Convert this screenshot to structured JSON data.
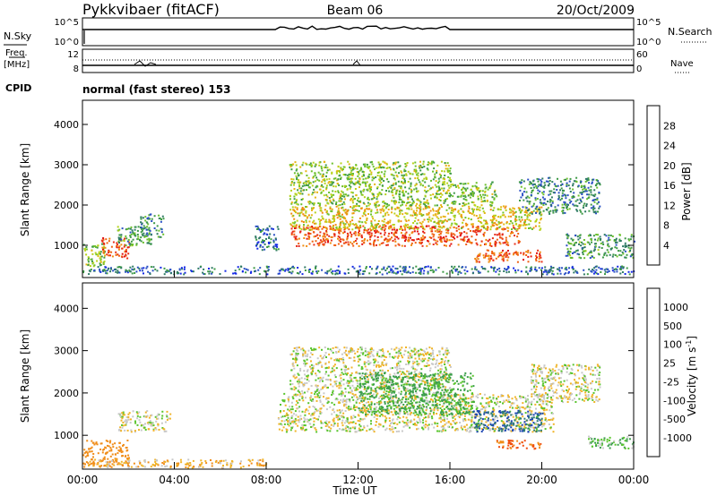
{
  "header": {
    "station": "Pykkvibaer (fitACF)",
    "beam": "Beam 06",
    "date": "20/Oct/2009"
  },
  "noise_panel": {
    "left_label": "N.Sky",
    "right_label": "N.Search",
    "left_ticks": [
      "10^5",
      "10^0"
    ],
    "right_ticks": [
      "10^5",
      "10^0"
    ]
  },
  "freq_panel": {
    "left_label_top": "Freq.",
    "left_label_unit": "[MHz]",
    "left_ticks": [
      "12",
      "8"
    ],
    "right_label": "Nave",
    "right_ticks": [
      "60",
      "0"
    ]
  },
  "cpid": {
    "label": "CPID",
    "text": "normal (fast stereo) 153"
  },
  "chart_data": [
    {
      "type": "heatmap",
      "title": "Power",
      "xlabel": "Time UT",
      "ylabel": "Slant Range [km]",
      "x_ticks": [
        "00:00",
        "04:00",
        "08:00",
        "12:00",
        "16:00",
        "20:00",
        "00:00"
      ],
      "y_ticks": [
        1000,
        2000,
        3000,
        4000
      ],
      "ylim": [
        200,
        4600
      ],
      "colorbar": {
        "label": "Power [dB]",
        "ticks": [
          "4",
          "8",
          "12",
          "16",
          "20",
          "24",
          "28"
        ],
        "colors": [
          "#1428e6",
          "#2a50c4",
          "#2e7a64",
          "#3e9a46",
          "#6cc02c",
          "#b6d21a",
          "#e6b414",
          "#f08c10",
          "#f06010",
          "#e83018",
          "#e01010"
        ]
      },
      "echo_regions": [
        {
          "t_start": 0.0,
          "t_end": 1.0,
          "r_low": 500,
          "r_high": 1100,
          "power": 14
        },
        {
          "t_start": 0.8,
          "t_end": 2.0,
          "r_low": 700,
          "r_high": 1200,
          "power": 26
        },
        {
          "t_start": 1.5,
          "t_end": 3.0,
          "r_low": 1000,
          "r_high": 1500,
          "power": 10
        },
        {
          "t_start": 2.5,
          "t_end": 3.5,
          "r_low": 1200,
          "r_high": 1800,
          "power": 8
        },
        {
          "t_start": 0.0,
          "t_end": 24.0,
          "r_low": 300,
          "r_high": 500,
          "power": 6
        },
        {
          "t_start": 7.5,
          "t_end": 8.5,
          "r_low": 900,
          "r_high": 1500,
          "power": 6
        },
        {
          "t_start": 9.0,
          "t_end": 19.0,
          "r_low": 1000,
          "r_high": 1500,
          "power": 26
        },
        {
          "t_start": 9.0,
          "t_end": 20.0,
          "r_low": 1400,
          "r_high": 2000,
          "power": 18
        },
        {
          "t_start": 9.0,
          "t_end": 18.0,
          "r_low": 2000,
          "r_high": 2600,
          "power": 14
        },
        {
          "t_start": 9.0,
          "t_end": 16.0,
          "r_low": 2600,
          "r_high": 3100,
          "power": 14
        },
        {
          "t_start": 17.0,
          "t_end": 20.0,
          "r_low": 600,
          "r_high": 900,
          "power": 26
        },
        {
          "t_start": 19.0,
          "t_end": 22.5,
          "r_low": 1800,
          "r_high": 2700,
          "power": 8
        },
        {
          "t_start": 21.0,
          "t_end": 24.0,
          "r_low": 700,
          "r_high": 1300,
          "power": 10
        }
      ]
    },
    {
      "type": "heatmap",
      "title": "Velocity",
      "xlabel": "Time UT",
      "ylabel": "Slant Range [km]",
      "x_ticks": [
        "00:00",
        "04:00",
        "08:00",
        "12:00",
        "16:00",
        "20:00",
        "00:00"
      ],
      "y_ticks": [
        1000,
        2000,
        3000,
        4000
      ],
      "ylim": [
        200,
        4600
      ],
      "colorbar": {
        "label": "Velocity [m s",
        "label_sup": "-1",
        "label_end": "]",
        "ticks": [
          "1000",
          "500",
          "100",
          "25",
          "-25",
          "-100",
          "-500",
          "-1000"
        ],
        "colors": [
          "#1e46b4",
          "#2e7c74",
          "#3a9e4a",
          "#58c42c",
          "#a0c83c",
          "#c8c8c8",
          "#c8c8c8",
          "#f0b428",
          "#f08c18",
          "#f05010",
          "#e81010"
        ]
      },
      "echo_regions": [
        {
          "t_start": 0.0,
          "t_end": 2.0,
          "r_low": 300,
          "r_high": 900,
          "velocity": -200
        },
        {
          "t_start": 1.5,
          "t_end": 3.8,
          "r_low": 1100,
          "r_high": 1600,
          "velocity": 0
        },
        {
          "t_start": 0.0,
          "t_end": 8.0,
          "r_low": 250,
          "r_high": 450,
          "velocity": -80
        },
        {
          "t_start": 8.5,
          "t_end": 20.5,
          "r_low": 1100,
          "r_high": 2000,
          "velocity": 0
        },
        {
          "t_start": 9.0,
          "t_end": 16.0,
          "r_low": 2000,
          "r_high": 3100,
          "velocity": 0
        },
        {
          "t_start": 12.0,
          "t_end": 17.0,
          "r_low": 1500,
          "r_high": 2500,
          "velocity": 150
        },
        {
          "t_start": 17.0,
          "t_end": 20.0,
          "r_low": 1100,
          "r_high": 1600,
          "velocity": 600
        },
        {
          "t_start": 18.0,
          "t_end": 20.0,
          "r_low": 700,
          "r_high": 900,
          "velocity": -300
        },
        {
          "t_start": 19.5,
          "t_end": 22.5,
          "r_low": 1800,
          "r_high": 2700,
          "velocity": 0
        },
        {
          "t_start": 22.0,
          "t_end": 24.0,
          "r_low": 700,
          "r_high": 1000,
          "velocity": 80
        }
      ]
    }
  ]
}
